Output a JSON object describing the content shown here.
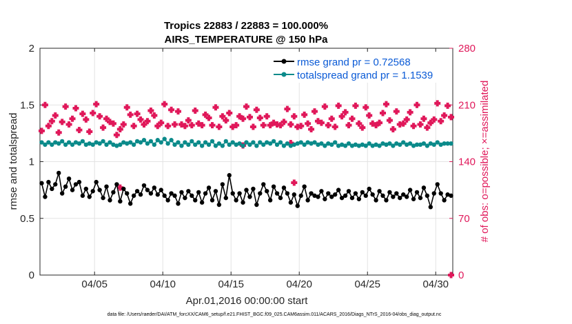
{
  "chart_data": {
    "type": "line",
    "title": "Tropics 22883 / 22883 = 100.000%",
    "subtitle": "AIRS_TEMPERATURE @ 150 hPa",
    "xlabel": "Apr.01,2016 00:00:00 start",
    "ylabel_left": "rmse and totalspread",
    "ylabel_right": "# of obs: o=possible; ×=assimilated",
    "ylim_left": [
      0,
      2
    ],
    "ylim_right": [
      0,
      280
    ],
    "xlim": [
      1.0,
      31.25
    ],
    "left_ticks": [
      0,
      0.5,
      1,
      1.5,
      2
    ],
    "left_tick_labels": [
      "0",
      "0.5",
      "1",
      "1.5",
      "2"
    ],
    "right_ticks": [
      0,
      70,
      140,
      210,
      280
    ],
    "right_tick_labels": [
      "0",
      "70",
      "140",
      "210",
      "280"
    ],
    "x_ticks": [
      5,
      10,
      15,
      20,
      25,
      30
    ],
    "x_tick_labels": [
      "04/05",
      "04/10",
      "04/15",
      "04/20",
      "04/25",
      "04/30"
    ],
    "legend_position": "top-right",
    "grid": true,
    "colors": {
      "rmse": "#000000",
      "spread": "#0b8a8a",
      "obs": "#e0185a",
      "legend_text": "#0a5ad6"
    },
    "series": [
      {
        "name": "rmse grand pr = 0.72568",
        "axis": "left",
        "x": [
          1.125,
          1.375,
          1.625,
          1.875,
          2.125,
          2.375,
          2.625,
          2.875,
          3.125,
          3.375,
          3.625,
          3.875,
          4.125,
          4.375,
          4.625,
          4.875,
          5.125,
          5.375,
          5.625,
          5.875,
          6.125,
          6.375,
          6.625,
          6.875,
          7.125,
          7.375,
          7.625,
          7.875,
          8.125,
          8.375,
          8.625,
          8.875,
          9.125,
          9.375,
          9.625,
          9.875,
          10.125,
          10.375,
          10.625,
          10.875,
          11.125,
          11.375,
          11.625,
          11.875,
          12.125,
          12.375,
          12.625,
          12.875,
          13.125,
          13.375,
          13.625,
          13.875,
          14.125,
          14.375,
          14.625,
          14.875,
          15.125,
          15.375,
          15.625,
          15.875,
          16.125,
          16.375,
          16.625,
          16.875,
          17.125,
          17.375,
          17.625,
          17.875,
          18.125,
          18.375,
          18.625,
          18.875,
          19.125,
          19.375,
          19.625,
          19.875,
          20.125,
          20.375,
          20.625,
          20.875,
          21.125,
          21.375,
          21.625,
          21.875,
          22.125,
          22.375,
          22.625,
          22.875,
          23.125,
          23.375,
          23.625,
          23.875,
          24.125,
          24.375,
          24.625,
          24.875,
          25.125,
          25.375,
          25.625,
          25.875,
          26.125,
          26.375,
          26.625,
          26.875,
          27.125,
          27.375,
          27.625,
          27.875,
          28.125,
          28.375,
          28.625,
          28.875,
          29.125,
          29.375,
          29.625,
          29.875,
          30.125,
          30.375,
          30.625,
          30.875,
          31.125
        ],
        "values": [
          0.81,
          0.69,
          0.82,
          0.76,
          0.8,
          0.9,
          0.72,
          0.78,
          0.85,
          0.75,
          0.8,
          0.82,
          0.7,
          0.76,
          0.69,
          0.74,
          0.82,
          0.75,
          0.68,
          0.78,
          0.66,
          0.73,
          0.8,
          0.65,
          0.76,
          0.72,
          0.63,
          0.7,
          0.74,
          0.71,
          0.79,
          0.75,
          0.72,
          0.77,
          0.71,
          0.75,
          0.7,
          0.66,
          0.72,
          0.7,
          0.63,
          0.73,
          0.68,
          0.74,
          0.7,
          0.66,
          0.73,
          0.64,
          0.72,
          0.77,
          0.66,
          0.74,
          0.62,
          0.8,
          0.68,
          0.88,
          0.72,
          0.66,
          0.72,
          0.64,
          0.75,
          0.69,
          0.76,
          0.62,
          0.72,
          0.8,
          0.74,
          0.66,
          0.78,
          0.72,
          0.68,
          0.77,
          0.72,
          0.64,
          0.71,
          0.61,
          0.7,
          0.78,
          0.66,
          0.72,
          0.7,
          0.69,
          0.74,
          0.67,
          0.72,
          0.69,
          0.71,
          0.75,
          0.68,
          0.7,
          0.74,
          0.68,
          0.72,
          0.67,
          0.73,
          0.7,
          0.76,
          0.71,
          0.66,
          0.74,
          0.7,
          0.66,
          0.73,
          0.69,
          0.72,
          0.68,
          0.71,
          0.69,
          0.75,
          0.67,
          0.73,
          0.68,
          0.77,
          0.7,
          0.6,
          0.72,
          0.8,
          0.72,
          0.66,
          0.71,
          0.7
        ]
      },
      {
        "name": "totalspread grand pr = 1.1539",
        "axis": "left",
        "x": [
          1.125,
          1.375,
          1.625,
          1.875,
          2.125,
          2.375,
          2.625,
          2.875,
          3.125,
          3.375,
          3.625,
          3.875,
          4.125,
          4.375,
          4.625,
          4.875,
          5.125,
          5.375,
          5.625,
          5.875,
          6.125,
          6.375,
          6.625,
          6.875,
          7.125,
          7.375,
          7.625,
          7.875,
          8.125,
          8.375,
          8.625,
          8.875,
          9.125,
          9.375,
          9.625,
          9.875,
          10.125,
          10.375,
          10.625,
          10.875,
          11.125,
          11.375,
          11.625,
          11.875,
          12.125,
          12.375,
          12.625,
          12.875,
          13.125,
          13.375,
          13.625,
          13.875,
          14.125,
          14.375,
          14.625,
          14.875,
          15.125,
          15.375,
          15.625,
          15.875,
          16.125,
          16.375,
          16.625,
          16.875,
          17.125,
          17.375,
          17.625,
          17.875,
          18.125,
          18.375,
          18.625,
          18.875,
          19.125,
          19.375,
          19.625,
          19.875,
          20.125,
          20.375,
          20.625,
          20.875,
          21.125,
          21.375,
          21.625,
          21.875,
          22.125,
          22.375,
          22.625,
          22.875,
          23.125,
          23.375,
          23.625,
          23.875,
          24.125,
          24.375,
          24.625,
          24.875,
          25.125,
          25.375,
          25.625,
          25.875,
          26.125,
          26.375,
          26.625,
          26.875,
          27.125,
          27.375,
          27.625,
          27.875,
          28.125,
          28.375,
          28.625,
          28.875,
          29.125,
          29.375,
          29.625,
          29.875,
          30.125,
          30.375,
          30.625,
          30.875,
          31.125
        ],
        "values": [
          1.17,
          1.15,
          1.17,
          1.15,
          1.17,
          1.16,
          1.18,
          1.15,
          1.17,
          1.15,
          1.17,
          1.16,
          1.18,
          1.15,
          1.16,
          1.15,
          1.17,
          1.16,
          1.18,
          1.15,
          1.17,
          1.15,
          1.14,
          1.15,
          1.17,
          1.16,
          1.17,
          1.15,
          1.18,
          1.17,
          1.19,
          1.16,
          1.18,
          1.15,
          1.19,
          1.17,
          1.2,
          1.16,
          1.19,
          1.15,
          1.17,
          1.14,
          1.17,
          1.15,
          1.18,
          1.15,
          1.17,
          1.14,
          1.17,
          1.15,
          1.18,
          1.14,
          1.16,
          1.14,
          1.18,
          1.15,
          1.17,
          1.15,
          1.16,
          1.14,
          1.17,
          1.15,
          1.17,
          1.14,
          1.17,
          1.15,
          1.17,
          1.16,
          1.18,
          1.15,
          1.17,
          1.14,
          1.16,
          1.14,
          1.15,
          1.16,
          1.17,
          1.15,
          1.17,
          1.16,
          1.17,
          1.15,
          1.16,
          1.14,
          1.16,
          1.15,
          1.17,
          1.14,
          1.15,
          1.14,
          1.16,
          1.14,
          1.15,
          1.14,
          1.15,
          1.14,
          1.16,
          1.14,
          1.15,
          1.14,
          1.16,
          1.15,
          1.16,
          1.14,
          1.16,
          1.15,
          1.17,
          1.15,
          1.16,
          1.14,
          1.15,
          1.15,
          1.16,
          1.14,
          1.16,
          1.15,
          1.17,
          1.15,
          1.16,
          1.16,
          1.16
        ]
      },
      {
        "name": "# of obs (possible / assimilated)",
        "axis": "right",
        "x": [
          1.125,
          1.375,
          1.625,
          1.875,
          2.125,
          2.375,
          2.625,
          2.875,
          3.125,
          3.375,
          3.625,
          3.875,
          4.125,
          4.375,
          4.625,
          4.875,
          5.125,
          5.375,
          5.625,
          5.875,
          6.125,
          6.375,
          6.625,
          6.875,
          7.125,
          7.375,
          7.625,
          7.875,
          8.125,
          8.375,
          8.625,
          8.875,
          9.125,
          9.375,
          9.625,
          9.875,
          10.125,
          10.375,
          10.625,
          10.875,
          11.125,
          11.375,
          11.625,
          11.875,
          12.125,
          12.375,
          12.625,
          12.875,
          13.125,
          13.375,
          13.625,
          13.875,
          14.125,
          14.375,
          14.625,
          14.875,
          15.125,
          15.375,
          15.625,
          15.875,
          16.125,
          16.375,
          16.625,
          16.875,
          17.125,
          17.375,
          17.625,
          17.875,
          18.125,
          18.375,
          18.625,
          18.875,
          19.125,
          19.375,
          19.625,
          19.875,
          20.125,
          20.375,
          20.625,
          20.875,
          21.125,
          21.375,
          21.625,
          21.875,
          22.125,
          22.375,
          22.625,
          22.875,
          23.125,
          23.375,
          23.625,
          23.875,
          24.125,
          24.375,
          24.625,
          24.875,
          25.125,
          25.375,
          25.625,
          25.875,
          26.125,
          26.375,
          26.625,
          26.875,
          27.125,
          27.375,
          27.625,
          27.875,
          28.125,
          28.375,
          28.625,
          28.875,
          29.125,
          29.375,
          29.625,
          29.875,
          30.125,
          30.375,
          30.625,
          30.875,
          31.125
        ],
        "values": [
          178,
          210,
          184,
          190,
          197,
          176,
          189,
          208,
          186,
          193,
          206,
          179,
          199,
          192,
          177,
          200,
          211,
          196,
          182,
          193,
          189,
          187,
          173,
          180,
          186,
          207,
          198,
          184,
          199,
          192,
          186,
          190,
          203,
          197,
          184,
          188,
          211,
          184,
          204,
          186,
          202,
          186,
          184,
          191,
          185,
          203,
          187,
          185,
          198,
          194,
          185,
          207,
          183,
          196,
          191,
          200,
          183,
          185,
          196,
          193,
          208,
          195,
          183,
          204,
          194,
          185,
          196,
          185,
          188,
          186,
          185,
          189,
          205,
          186,
          196,
          183,
          184,
          198,
          187,
          180,
          202,
          190,
          188,
          208,
          185,
          193,
          183,
          209,
          196,
          201,
          185,
          193,
          209,
          187,
          182,
          207,
          197,
          187,
          185,
          188,
          200,
          211,
          191,
          180,
          202,
          186,
          187,
          192,
          201,
          184,
          210,
          186,
          193,
          182,
          188,
          192,
          212,
          190,
          197,
          209,
          195
        ]
      }
    ],
    "extra_obs_markers": [
      {
        "x": 6.875,
        "y": 108
      },
      {
        "x": 15.875,
        "y": 160
      },
      {
        "x": 19.375,
        "y": 163
      },
      {
        "x": 19.625,
        "y": 114
      },
      {
        "x": 31.125,
        "y": 0
      }
    ]
  },
  "footer": "data file: /Users/raeder/DAI/ATM_forcXX/CAM6_setup/f.e21.FHIST_BGC.f09_025.CAM6assim.011/ACARS_2016/Diags_NTrS_2016-04/obs_diag_output.nc"
}
